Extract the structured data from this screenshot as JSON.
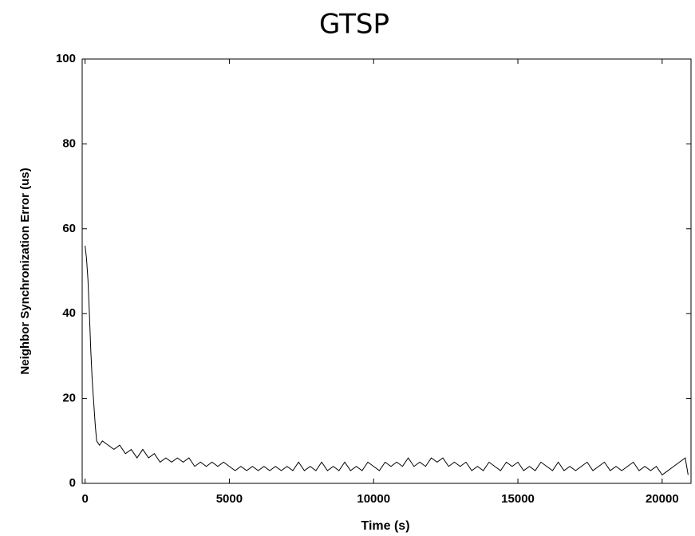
{
  "chart_data": {
    "type": "line",
    "title": "GTSP",
    "x_label": "Time (s)",
    "y_label": "Neighbor Synchronization Error (us)",
    "x": [
      0,
      50,
      100,
      150,
      200,
      250,
      300,
      350,
      400,
      500,
      600,
      800,
      1000,
      1200,
      1400,
      1600,
      1800,
      2000,
      2200,
      2400,
      2600,
      2800,
      3000,
      3200,
      3400,
      3600,
      3800,
      4000,
      4200,
      4400,
      4600,
      4800,
      5000,
      5200,
      5400,
      5600,
      5800,
      6000,
      6200,
      6400,
      6600,
      6800,
      7000,
      7200,
      7400,
      7600,
      7800,
      8000,
      8200,
      8400,
      8600,
      8800,
      9000,
      9200,
      9400,
      9600,
      9800,
      10000,
      10200,
      10400,
      10600,
      10800,
      11000,
      11200,
      11400,
      11600,
      11800,
      12000,
      12200,
      12400,
      12600,
      12800,
      13000,
      13200,
      13400,
      13600,
      13800,
      14000,
      14200,
      14400,
      14600,
      14800,
      15000,
      15200,
      15400,
      15600,
      15800,
      16000,
      16200,
      16400,
      16600,
      16800,
      17000,
      17200,
      17400,
      17600,
      17800,
      18000,
      18200,
      18400,
      18600,
      18800,
      19000,
      19200,
      19400,
      19600,
      19800,
      20000,
      20200,
      20400,
      20600,
      20800,
      20900
    ],
    "series": [
      {
        "color": "#000000",
        "values": [
          56,
          53,
          48,
          40,
          31,
          24,
          19,
          14,
          10,
          9,
          10,
          9,
          8,
          9,
          7,
          8,
          6,
          8,
          6,
          7,
          5,
          6,
          5,
          6,
          5,
          6,
          4,
          5,
          4,
          5,
          4,
          5,
          4,
          3,
          4,
          3,
          4,
          3,
          4,
          3,
          4,
          3,
          4,
          3,
          5,
          3,
          4,
          3,
          5,
          3,
          4,
          3,
          5,
          3,
          4,
          3,
          5,
          4,
          3,
          5,
          4,
          5,
          4,
          6,
          4,
          5,
          4,
          6,
          5,
          6,
          4,
          5,
          4,
          5,
          3,
          4,
          3,
          5,
          4,
          3,
          5,
          4,
          5,
          3,
          4,
          3,
          5,
          4,
          3,
          5,
          3,
          4,
          3,
          4,
          5,
          3,
          4,
          5,
          3,
          4,
          3,
          4,
          5,
          3,
          4,
          3,
          4,
          2,
          3,
          4,
          5,
          6,
          2
        ]
      }
    ],
    "xlim": [
      -100,
      21000
    ],
    "ylim": [
      0,
      100
    ],
    "xticks": [
      0,
      5000,
      10000,
      15000,
      20000
    ],
    "yticks": [
      0,
      20,
      40,
      60,
      80,
      100
    ],
    "grid": false
  }
}
